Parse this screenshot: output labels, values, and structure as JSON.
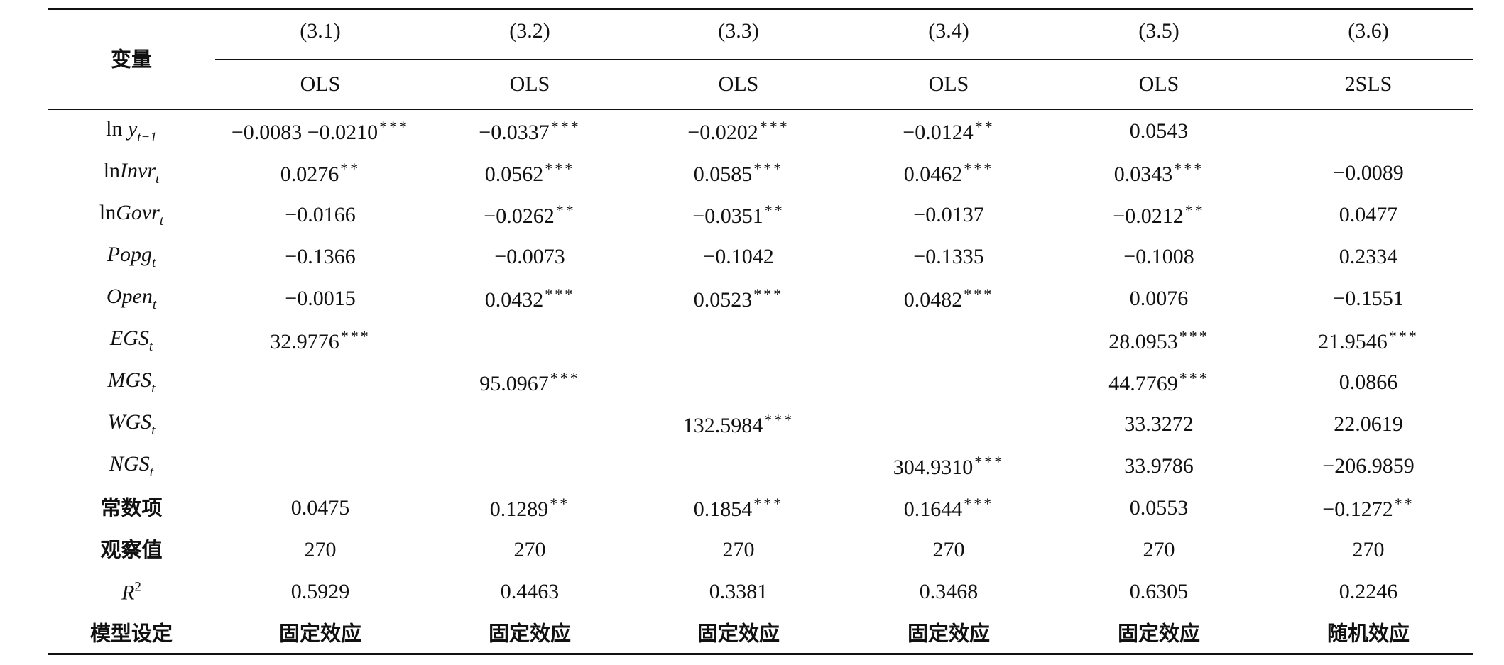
{
  "table": {
    "corner": "变量",
    "columns": [
      {
        "model": "(3.1)",
        "method": "OLS"
      },
      {
        "model": "(3.2)",
        "method": "OLS"
      },
      {
        "model": "(3.3)",
        "method": "OLS"
      },
      {
        "model": "(3.4)",
        "method": "OLS"
      },
      {
        "model": "(3.5)",
        "method": "OLS"
      },
      {
        "model": "(3.6)",
        "method": "2SLS"
      }
    ],
    "rows": [
      {
        "label": {
          "pre": "ln ",
          "var": "y",
          "sub": "t−1"
        },
        "cells": [
          {
            "v": "−0.0083 −0.0210",
            "s": "***"
          },
          {
            "v": "−0.0337",
            "s": "***"
          },
          {
            "v": "−0.0202",
            "s": "***"
          },
          {
            "v": "−0.0124",
            "s": "**"
          },
          {
            "v": "0.0543"
          },
          null
        ]
      },
      {
        "label": {
          "pre": "ln",
          "var": "Invr",
          "sub": "t"
        },
        "cells": [
          {
            "v": "0.0276",
            "s": "**"
          },
          {
            "v": "0.0562",
            "s": "***"
          },
          {
            "v": "0.0585",
            "s": "***"
          },
          {
            "v": "0.0462",
            "s": "***"
          },
          {
            "v": "0.0343",
            "s": "***"
          },
          {
            "v": "−0.0089"
          }
        ]
      },
      {
        "label": {
          "pre": "ln",
          "var": "Govr",
          "sub": "t"
        },
        "cells": [
          {
            "v": "−0.0166"
          },
          {
            "v": "−0.0262",
            "s": "**"
          },
          {
            "v": "−0.0351",
            "s": "**"
          },
          {
            "v": "−0.0137"
          },
          {
            "v": "−0.0212",
            "s": "**"
          },
          {
            "v": "0.0477"
          }
        ]
      },
      {
        "label": {
          "var": "Popg",
          "sub": "t"
        },
        "cells": [
          {
            "v": "−0.1366"
          },
          {
            "v": "−0.0073"
          },
          {
            "v": "−0.1042"
          },
          {
            "v": "−0.1335"
          },
          {
            "v": "−0.1008"
          },
          {
            "v": "0.2334"
          }
        ]
      },
      {
        "label": {
          "var": "Open",
          "sub": "t"
        },
        "cells": [
          {
            "v": "−0.0015"
          },
          {
            "v": "0.0432",
            "s": "***"
          },
          {
            "v": "0.0523",
            "s": "***"
          },
          {
            "v": "0.0482",
            "s": "***"
          },
          {
            "v": "0.0076"
          },
          {
            "v": "−0.1551"
          }
        ]
      },
      {
        "label": {
          "var": "EGS",
          "sub": "t"
        },
        "cells": [
          {
            "v": "32.9776",
            "s": "***"
          },
          null,
          null,
          null,
          {
            "v": "28.0953",
            "s": "***"
          },
          {
            "v": "21.9546",
            "s": "***"
          }
        ]
      },
      {
        "label": {
          "var": "MGS",
          "sub": "t"
        },
        "cells": [
          null,
          {
            "v": "95.0967",
            "s": "***"
          },
          null,
          null,
          {
            "v": "44.7769",
            "s": "***"
          },
          {
            "v": "0.0866"
          }
        ]
      },
      {
        "label": {
          "var": "WGS",
          "sub": "t"
        },
        "cells": [
          null,
          null,
          {
            "v": "132.5984",
            "s": "***"
          },
          null,
          {
            "v": "33.3272"
          },
          {
            "v": "22.0619"
          }
        ]
      },
      {
        "label": {
          "var": "NGS",
          "sub": "t"
        },
        "cells": [
          null,
          null,
          null,
          {
            "v": "304.9310",
            "s": "***"
          },
          {
            "v": "33.9786"
          },
          {
            "v": "−206.9859"
          }
        ]
      },
      {
        "label": {
          "text": "常数项"
        },
        "cells": [
          {
            "v": "0.0475"
          },
          {
            "v": "0.1289",
            "s": "**"
          },
          {
            "v": "0.1854",
            "s": "***"
          },
          {
            "v": "0.1644",
            "s": "***"
          },
          {
            "v": "0.0553"
          },
          {
            "v": "−0.1272",
            "s": "**"
          }
        ]
      },
      {
        "label": {
          "text": "观察值"
        },
        "cells": [
          {
            "v": "270"
          },
          {
            "v": "270"
          },
          {
            "v": "270"
          },
          {
            "v": "270"
          },
          {
            "v": "270"
          },
          {
            "v": "270"
          }
        ]
      },
      {
        "label": {
          "var": "R",
          "sup": "2"
        },
        "cells": [
          {
            "v": "0.5929"
          },
          {
            "v": "0.4463"
          },
          {
            "v": "0.3381"
          },
          {
            "v": "0.3468"
          },
          {
            "v": "0.6305"
          },
          {
            "v": "0.2246"
          }
        ]
      },
      {
        "label": {
          "text": "模型设定"
        },
        "cells": [
          {
            "t": "固定效应"
          },
          {
            "t": "固定效应"
          },
          {
            "t": "固定效应"
          },
          {
            "t": "固定效应"
          },
          {
            "t": "固定效应"
          },
          {
            "t": "随机效应"
          }
        ]
      }
    ]
  }
}
